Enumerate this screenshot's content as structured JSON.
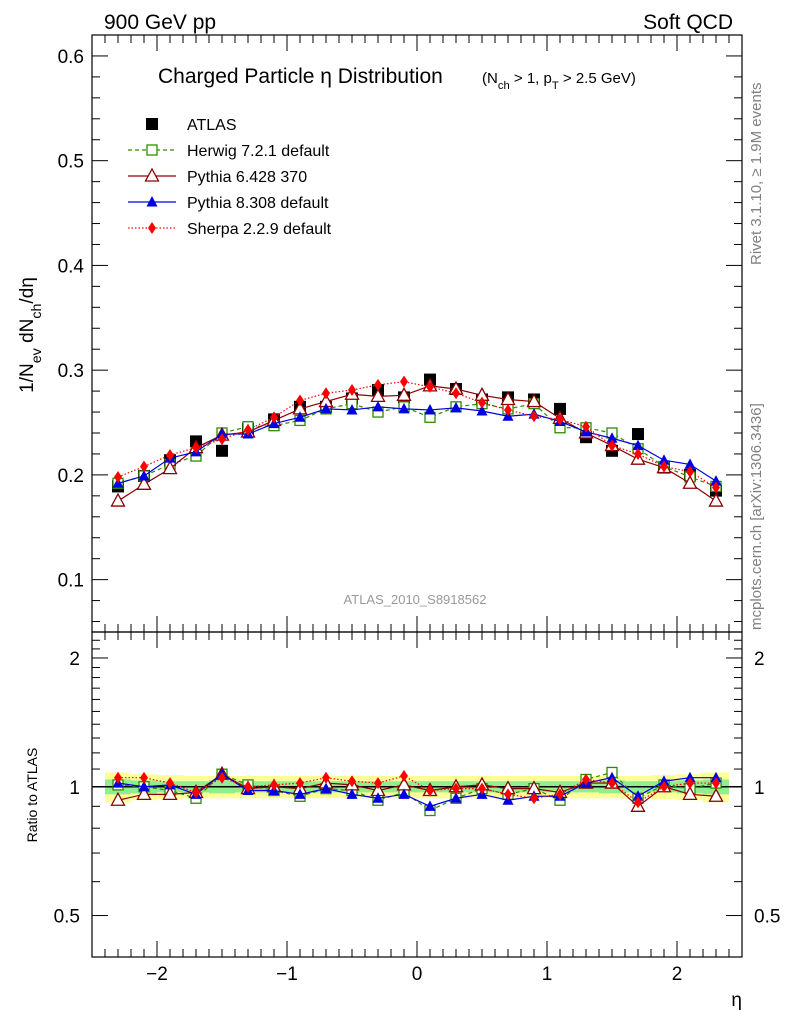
{
  "header": {
    "left": "900 GeV pp",
    "right": "Soft QCD"
  },
  "title": {
    "main": "Charged Particle η Distribution",
    "cuts": "(N_ch > 1, p_T > 2.5 GeV)"
  },
  "side_labels": {
    "rivet": "Rivet 3.1.10, ≥ 1.9M events",
    "mcplots": "mcplots.cern.ch [arXiv:1306.3436]"
  },
  "analysis_id": "ATLAS_2010_S8918562",
  "colors": {
    "atlas": "#000000",
    "herwig": "#2e8b00",
    "pythia6": "#8b0000",
    "pythia8": "#0000e0",
    "sherpa": "#ff0000",
    "band_inner": "#90ee90",
    "band_outer": "#ffff99"
  },
  "chart_data": [
    {
      "type": "scatter",
      "panel": "main",
      "ylabel": "1/N_ev dN_ch/dη",
      "xlim": [
        -2.5,
        2.5
      ],
      "ylim": [
        0.05,
        0.62
      ],
      "yticks": [
        0.1,
        0.2,
        0.3,
        0.4,
        0.5,
        0.6
      ],
      "ytick_labels": [
        "0.1",
        "0.2",
        "0.3",
        "0.4",
        "0.5",
        "0.6"
      ],
      "legend_position": "top-left",
      "x": [
        -2.3,
        -2.1,
        -1.9,
        -1.7,
        -1.5,
        -1.3,
        -1.1,
        -0.9,
        -0.7,
        -0.5,
        -0.3,
        -0.1,
        0.1,
        0.3,
        0.5,
        0.7,
        0.9,
        1.1,
        1.3,
        1.5,
        1.7,
        1.9,
        2.1,
        2.3
      ],
      "series": [
        {
          "key": "atlas",
          "name": "ATLAS",
          "marker": "square-filled",
          "line": "none",
          "values": [
            0.189,
            0.199,
            0.214,
            0.232,
            0.223,
            0.244,
            0.253,
            0.265,
            0.265,
            0.273,
            0.281,
            0.274,
            0.291,
            0.282,
            0.272,
            0.274,
            0.272,
            0.263,
            0.236,
            0.223,
            0.239,
            0.207,
            0.2,
            0.185
          ]
        },
        {
          "key": "herwig",
          "name": "Herwig 7.2.1 default",
          "marker": "square-open",
          "line": "dashed",
          "values": [
            0.192,
            0.199,
            0.21,
            0.218,
            0.24,
            0.246,
            0.247,
            0.252,
            0.263,
            0.268,
            0.26,
            0.265,
            0.255,
            0.265,
            0.268,
            0.263,
            0.268,
            0.245,
            0.245,
            0.24,
            0.225,
            0.208,
            0.198,
            0.189
          ]
        },
        {
          "key": "pythia6",
          "name": "Pythia 6.428 370",
          "marker": "triangle-open",
          "line": "solid",
          "values": [
            0.175,
            0.191,
            0.206,
            0.226,
            0.238,
            0.241,
            0.252,
            0.263,
            0.27,
            0.277,
            0.275,
            0.276,
            0.285,
            0.282,
            0.276,
            0.272,
            0.27,
            0.254,
            0.24,
            0.228,
            0.215,
            0.207,
            0.192,
            0.175
          ]
        },
        {
          "key": "pythia8",
          "name": "Pythia 8.308 default",
          "marker": "triangle-filled",
          "line": "solid",
          "values": [
            0.192,
            0.199,
            0.216,
            0.222,
            0.239,
            0.239,
            0.249,
            0.255,
            0.263,
            0.262,
            0.265,
            0.263,
            0.262,
            0.264,
            0.261,
            0.256,
            0.258,
            0.251,
            0.241,
            0.235,
            0.228,
            0.214,
            0.21,
            0.194
          ]
        },
        {
          "key": "sherpa",
          "name": "Sherpa 2.2.9 default",
          "marker": "diamond-filled",
          "line": "dotted",
          "values": [
            0.198,
            0.208,
            0.219,
            0.226,
            0.234,
            0.243,
            0.255,
            0.271,
            0.278,
            0.281,
            0.286,
            0.289,
            0.284,
            0.278,
            0.269,
            0.262,
            0.256,
            0.253,
            0.246,
            0.228,
            0.22,
            0.208,
            0.203,
            0.188
          ]
        }
      ]
    },
    {
      "type": "scatter",
      "panel": "ratio",
      "ylabel": "Ratio to ATLAS",
      "xlabel": "η",
      "xlim": [
        -2.5,
        2.5
      ],
      "xticks": [
        -2,
        -1,
        0,
        1,
        2
      ],
      "xtick_labels": [
        "−2",
        "−1",
        "0",
        "1",
        "2"
      ],
      "ylim": [
        0.4,
        2.3
      ],
      "yscale": "log",
      "yticks": [
        0.5,
        1,
        2
      ],
      "ytick_labels": [
        "0.5",
        "1",
        "2"
      ],
      "x": [
        -2.3,
        -2.1,
        -1.9,
        -1.7,
        -1.5,
        -1.3,
        -1.1,
        -0.9,
        -0.7,
        -0.5,
        -0.3,
        -0.1,
        0.1,
        0.3,
        0.5,
        0.7,
        0.9,
        1.1,
        1.3,
        1.5,
        1.7,
        1.9,
        2.1,
        2.3
      ],
      "uncertainty_band": {
        "inner": [
          0.04,
          0.035,
          0.03,
          0.03,
          0.035,
          0.03,
          0.03,
          0.03,
          0.03,
          0.03,
          0.03,
          0.03,
          0.03,
          0.03,
          0.03,
          0.03,
          0.03,
          0.03,
          0.03,
          0.035,
          0.03,
          0.03,
          0.035,
          0.04
        ],
        "outer": [
          0.08,
          0.07,
          0.065,
          0.06,
          0.06,
          0.06,
          0.06,
          0.06,
          0.06,
          0.06,
          0.06,
          0.06,
          0.06,
          0.06,
          0.06,
          0.06,
          0.06,
          0.06,
          0.06,
          0.06,
          0.06,
          0.065,
          0.07,
          0.08
        ]
      },
      "series": [
        {
          "key": "herwig",
          "name": "Herwig 7.2.1 default",
          "marker": "square-open",
          "line": "dashed",
          "values": [
            1.01,
            1.0,
            0.98,
            0.94,
            1.07,
            1.01,
            0.98,
            0.95,
            0.99,
            0.98,
            0.93,
            0.97,
            0.88,
            0.94,
            0.99,
            0.96,
            0.99,
            0.93,
            1.04,
            1.08,
            0.94,
            1.01,
            0.99,
            1.02
          ]
        },
        {
          "key": "pythia6",
          "name": "Pythia 6.428 370",
          "marker": "triangle-open",
          "line": "solid",
          "values": [
            0.93,
            0.96,
            0.96,
            0.97,
            1.07,
            0.99,
            1.0,
            0.99,
            1.02,
            1.01,
            0.98,
            1.01,
            0.98,
            1.0,
            1.01,
            0.99,
            0.99,
            0.97,
            1.02,
            1.02,
            0.9,
            1.0,
            0.96,
            0.95
          ]
        },
        {
          "key": "pythia8",
          "name": "Pythia 8.308 default",
          "marker": "triangle-filled",
          "line": "solid",
          "values": [
            1.02,
            1.0,
            1.01,
            0.96,
            1.07,
            0.98,
            0.98,
            0.96,
            0.99,
            0.96,
            0.94,
            0.96,
            0.9,
            0.94,
            0.96,
            0.93,
            0.95,
            0.95,
            1.02,
            1.05,
            0.95,
            1.03,
            1.05,
            1.05
          ]
        },
        {
          "key": "sherpa",
          "name": "Sherpa 2.2.9 default",
          "marker": "diamond-filled",
          "line": "dotted",
          "values": [
            1.05,
            1.05,
            1.02,
            0.97,
            1.05,
            1.0,
            1.01,
            1.02,
            1.05,
            1.03,
            1.02,
            1.06,
            0.98,
            0.99,
            0.99,
            0.96,
            0.94,
            0.96,
            1.04,
            1.02,
            0.92,
            1.0,
            1.02,
            1.02
          ]
        }
      ]
    }
  ]
}
